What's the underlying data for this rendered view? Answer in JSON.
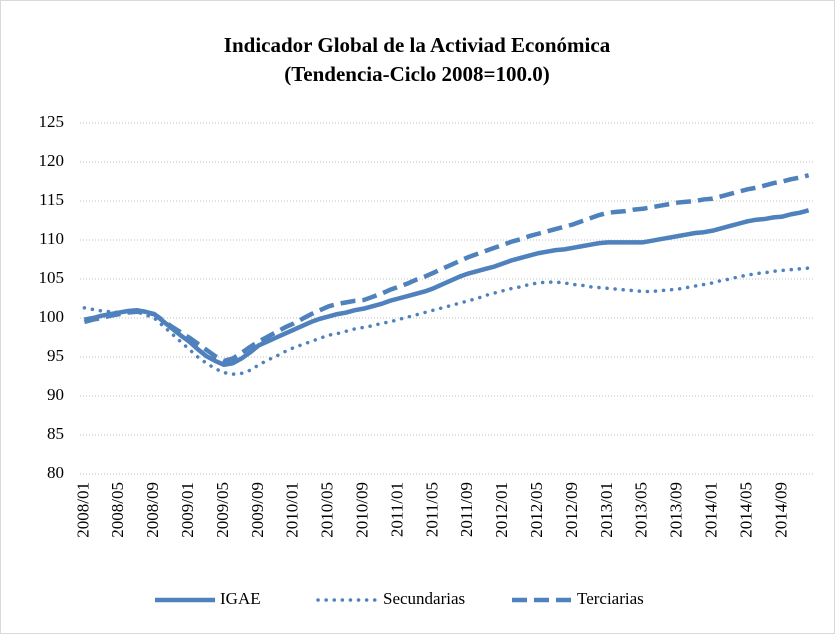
{
  "chart_data": {
    "type": "line",
    "title": "Indicador Global de la Activiad Económica",
    "subtitle": "(Tendencia-Ciclo 2008=100.0)",
    "categories": [
      "2008/01",
      null,
      null,
      null,
      "2008/05",
      null,
      null,
      null,
      "2008/09",
      null,
      null,
      null,
      "2009/01",
      null,
      null,
      null,
      "2009/05",
      null,
      null,
      null,
      "2009/09",
      null,
      null,
      null,
      "2010/01",
      null,
      null,
      null,
      "2010/05",
      null,
      null,
      null,
      "2010/09",
      null,
      null,
      null,
      "2011/01",
      null,
      null,
      null,
      "2011/05",
      null,
      null,
      null,
      "2011/09",
      null,
      null,
      null,
      "2012/01",
      null,
      null,
      null,
      "2012/05",
      null,
      null,
      null,
      "2012/09",
      null,
      null,
      null,
      "2013/01",
      null,
      null,
      null,
      "2013/05",
      null,
      null,
      null,
      "2013/09",
      null,
      null,
      null,
      "2014/01",
      null,
      null,
      null,
      "2014/05",
      null,
      null,
      null,
      "2014/09",
      null,
      null,
      null
    ],
    "series": [
      {
        "name": "IGAE",
        "color": "#4f81bd",
        "style": "solid",
        "values": [
          99.8,
          100.0,
          100.3,
          100.5,
          100.7,
          100.9,
          101.0,
          100.8,
          100.5,
          99.6,
          98.7,
          97.8,
          97.0,
          96.0,
          95.1,
          94.5,
          94.0,
          94.2,
          94.8,
          95.6,
          96.5,
          97.0,
          97.5,
          98.0,
          98.5,
          99.0,
          99.5,
          99.9,
          100.2,
          100.5,
          100.7,
          101.0,
          101.2,
          101.5,
          101.8,
          102.2,
          102.5,
          102.8,
          103.1,
          103.4,
          103.8,
          104.3,
          104.8,
          105.3,
          105.7,
          106.0,
          106.3,
          106.6,
          107.0,
          107.4,
          107.7,
          108.0,
          108.3,
          108.5,
          108.7,
          108.8,
          109.0,
          109.2,
          109.4,
          109.6,
          109.7,
          109.7,
          109.7,
          109.7,
          109.7,
          109.9,
          110.1,
          110.3,
          110.5,
          110.7,
          110.9,
          111.0,
          111.2,
          111.5,
          111.8,
          112.1,
          112.4,
          112.6,
          112.7,
          112.9,
          113.0,
          113.3,
          113.5,
          113.8
        ]
      },
      {
        "name": "Secundarias",
        "color": "#4f81bd",
        "style": "dotted",
        "values": [
          101.3,
          101.1,
          100.9,
          100.8,
          100.7,
          100.8,
          100.8,
          100.4,
          100.0,
          99.0,
          98.0,
          97.0,
          96.0,
          95.0,
          94.2,
          93.5,
          93.0,
          92.8,
          92.9,
          93.3,
          94.0,
          94.6,
          95.1,
          95.7,
          96.2,
          96.6,
          97.0,
          97.4,
          97.8,
          98.0,
          98.3,
          98.6,
          98.8,
          99.0,
          99.3,
          99.5,
          99.8,
          100.1,
          100.4,
          100.7,
          101.0,
          101.3,
          101.6,
          101.9,
          102.2,
          102.5,
          102.9,
          103.2,
          103.5,
          103.8,
          104.0,
          104.3,
          104.5,
          104.6,
          104.6,
          104.5,
          104.3,
          104.2,
          104.0,
          103.9,
          103.8,
          103.7,
          103.6,
          103.5,
          103.4,
          103.4,
          103.5,
          103.6,
          103.7,
          103.9,
          104.1,
          104.3,
          104.5,
          104.8,
          105.0,
          105.3,
          105.5,
          105.7,
          105.8,
          106.0,
          106.1,
          106.2,
          106.3,
          106.4
        ]
      },
      {
        "name": "Terciarias",
        "color": "#4f81bd",
        "style": "dashed",
        "values": [
          99.5,
          99.8,
          100.0,
          100.3,
          100.5,
          100.7,
          100.8,
          100.7,
          100.5,
          99.7,
          98.9,
          98.2,
          97.5,
          96.7,
          95.9,
          95.1,
          94.5,
          94.8,
          95.5,
          96.3,
          97.0,
          97.6,
          98.2,
          98.8,
          99.3,
          99.9,
          100.5,
          101.0,
          101.5,
          101.8,
          102.0,
          102.2,
          102.3,
          102.7,
          103.1,
          103.6,
          104.0,
          104.4,
          104.9,
          105.3,
          105.8,
          106.3,
          106.8,
          107.3,
          107.8,
          108.2,
          108.6,
          109.0,
          109.4,
          109.8,
          110.1,
          110.5,
          110.8,
          111.1,
          111.4,
          111.7,
          112.0,
          112.4,
          112.8,
          113.2,
          113.5,
          113.6,
          113.7,
          113.9,
          114.0,
          114.2,
          114.4,
          114.6,
          114.8,
          114.9,
          115.0,
          115.2,
          115.3,
          115.6,
          115.9,
          116.2,
          116.5,
          116.7,
          117.0,
          117.3,
          117.5,
          117.8,
          118.0,
          118.3
        ]
      }
    ],
    "ylim": [
      80,
      125
    ],
    "yticks": [
      80,
      85,
      90,
      95,
      100,
      105,
      110,
      115,
      120,
      125
    ],
    "grid": true,
    "legend": "bottom"
  }
}
